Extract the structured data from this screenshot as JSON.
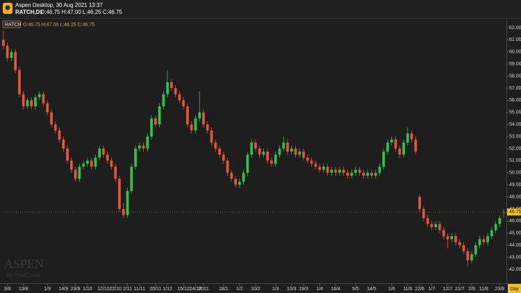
{
  "window": {
    "title": "Aspen Desktop, 30 Aug 2021 13:37",
    "symbol": "RATCH,D1",
    "quote": "O:46.75 H:47.00 L:46.25 C:46.75"
  },
  "watermark": {
    "brand": "ASPEN",
    "by": "by ThaiQuest"
  },
  "chart_data": {
    "type": "candlestick",
    "legend_text": "O:46.75 H:47.00 L:46.25 C:46.75",
    "period": "Day",
    "last_price": 46.75,
    "ylim": [
      40.85,
      62.69
    ],
    "yticks": [
      {
        "value": 42,
        "label": "42.00"
      },
      {
        "value": 43,
        "label": "43.00"
      },
      {
        "value": 44,
        "label": "44.00"
      },
      {
        "value": 45,
        "label": "45.00"
      },
      {
        "value": 46,
        "label": "46.00"
      },
      {
        "value": 47,
        "label": "47.00"
      },
      {
        "value": 48,
        "label": "48.00"
      },
      {
        "value": 49,
        "label": "49.00"
      },
      {
        "value": 50,
        "label": "50.00"
      },
      {
        "value": 51,
        "label": "51.00"
      },
      {
        "value": 52,
        "label": "52.00"
      },
      {
        "value": 53,
        "label": "53.00"
      },
      {
        "value": 54,
        "label": "54.00"
      },
      {
        "value": 55,
        "label": "55.00"
      },
      {
        "value": 56,
        "label": "56.00"
      },
      {
        "value": 57,
        "label": "57.00"
      },
      {
        "value": 58,
        "label": "58.00"
      },
      {
        "value": 59,
        "label": "59.00"
      },
      {
        "value": 60,
        "label": "60.00"
      },
      {
        "value": 61,
        "label": "61.00"
      },
      {
        "value": 62,
        "label": "62.00"
      }
    ],
    "xticks": [
      {
        "value": 1,
        "label": "3/8"
      },
      {
        "value": 5,
        "label": "13/8"
      },
      {
        "value": 11,
        "label": "1/9"
      },
      {
        "value": 15,
        "label": "14/9"
      },
      {
        "value": 18,
        "label": "23/9"
      },
      {
        "value": 21,
        "label": "1/10"
      },
      {
        "value": 25,
        "label": "12/10"
      },
      {
        "value": 28,
        "label": "22/10"
      },
      {
        "value": 31,
        "label": "2/11"
      },
      {
        "value": 34,
        "label": "11/11"
      },
      {
        "value": 38,
        "label": "20/11"
      },
      {
        "value": 41,
        "label": "1/12"
      },
      {
        "value": 45,
        "label": "15/12"
      },
      {
        "value": 48,
        "label": "24/12"
      },
      {
        "value": 50,
        "label": "2021"
      },
      {
        "value": 55,
        "label": "18/1"
      },
      {
        "value": 59,
        "label": "1/2"
      },
      {
        "value": 63,
        "label": "10/2"
      },
      {
        "value": 68,
        "label": "1/3"
      },
      {
        "value": 72,
        "label": "10/3"
      },
      {
        "value": 75,
        "label": "19/3"
      },
      {
        "value": 79,
        "label": "1/4"
      },
      {
        "value": 83,
        "label": "16/4"
      },
      {
        "value": 88,
        "label": "5/5"
      },
      {
        "value": 92,
        "label": "14/5"
      },
      {
        "value": 97,
        "label": "1/6"
      },
      {
        "value": 101,
        "label": "11/6"
      },
      {
        "value": 104,
        "label": "22/6"
      },
      {
        "value": 107,
        "label": "1/7"
      },
      {
        "value": 111,
        "label": "12/7"
      },
      {
        "value": 114,
        "label": "21/7"
      },
      {
        "value": 117,
        "label": "2/8"
      },
      {
        "value": 120,
        "label": "11/8"
      },
      {
        "value": 124,
        "label": "23/8"
      }
    ],
    "grid": false,
    "series": [
      {
        "name": "RATCH",
        "up_color": "#2fc44c",
        "down_color": "#e5573a",
        "ohlc": [
          [
            61,
            61.75,
            60.25,
            60.5
          ],
          [
            60.5,
            60.75,
            59.25,
            59.5
          ],
          [
            59.5,
            60.25,
            59.25,
            60
          ],
          [
            60,
            60.25,
            58.25,
            58.5
          ],
          [
            58.5,
            58.75,
            56.25,
            56.5
          ],
          [
            56.5,
            56.75,
            55.25,
            55.5
          ],
          [
            55.5,
            56.25,
            55.25,
            56
          ],
          [
            56,
            56.25,
            55.25,
            55.5
          ],
          [
            55.5,
            56.5,
            55.25,
            56.25
          ],
          [
            56.25,
            56.75,
            56,
            56.5
          ],
          [
            56.5,
            56.75,
            55.5,
            55.75
          ],
          [
            55.75,
            56,
            54.75,
            55
          ],
          [
            55,
            55.25,
            53.75,
            54
          ],
          [
            54,
            54.25,
            53.25,
            53.5
          ],
          [
            53.5,
            53.75,
            52.5,
            52.75
          ],
          [
            52.75,
            53,
            51.75,
            52
          ],
          [
            52,
            52.25,
            50.75,
            51
          ],
          [
            51,
            51.25,
            50,
            50.25
          ],
          [
            50.25,
            50.5,
            49.25,
            49.5
          ],
          [
            49.5,
            50.75,
            49.25,
            50.5
          ],
          [
            50.5,
            51,
            50.25,
            50.75
          ],
          [
            50.75,
            51.25,
            50.5,
            51
          ],
          [
            51,
            51.25,
            50.25,
            50.5
          ],
          [
            50.5,
            51.5,
            50.25,
            51.25
          ],
          [
            51.25,
            52.25,
            51,
            52
          ],
          [
            52,
            52.25,
            51.25,
            51.5
          ],
          [
            51.5,
            51.75,
            50.75,
            51
          ],
          [
            51,
            51.25,
            50.25,
            50.5
          ],
          [
            50.5,
            50.75,
            49.25,
            49.5
          ],
          [
            49.5,
            49.75,
            46.75,
            47
          ],
          [
            47,
            47.5,
            46.25,
            46.5
          ],
          [
            46.5,
            48.75,
            46.25,
            48.5
          ],
          [
            48.5,
            50.75,
            48.25,
            50.5
          ],
          [
            50.5,
            52.25,
            50.25,
            52
          ],
          [
            52,
            52.5,
            51.75,
            52.25
          ],
          [
            52.25,
            52.5,
            51.75,
            52
          ],
          [
            52,
            53.25,
            51.75,
            53
          ],
          [
            53,
            54.75,
            52.75,
            54.5
          ],
          [
            54.5,
            54.75,
            53.75,
            54
          ],
          [
            54,
            55.75,
            53.75,
            55.5
          ],
          [
            55.5,
            56.75,
            55.25,
            56.5
          ],
          [
            56.5,
            58.5,
            56.25,
            57.5
          ],
          [
            57.5,
            57.75,
            56.75,
            57
          ],
          [
            57,
            57.25,
            56.25,
            56.5
          ],
          [
            56.5,
            56.75,
            55.75,
            56
          ],
          [
            56,
            56.25,
            55.25,
            55.5
          ],
          [
            55.5,
            55.75,
            53.75,
            54
          ],
          [
            54,
            54.25,
            53.25,
            53.5
          ],
          [
            53.5,
            54.75,
            53.25,
            54.5
          ],
          [
            54.5,
            56.75,
            54.25,
            55
          ],
          [
            55,
            55.25,
            53.75,
            54
          ],
          [
            54,
            54.25,
            53.25,
            53.5
          ],
          [
            53.5,
            53.75,
            52.25,
            52.5
          ],
          [
            52.5,
            52.75,
            51.75,
            52
          ],
          [
            52,
            52.25,
            51.25,
            51.5
          ],
          [
            51.5,
            51.75,
            50.75,
            51
          ],
          [
            51,
            51.25,
            49.75,
            50
          ],
          [
            50,
            50.25,
            49.25,
            49.5
          ],
          [
            49.5,
            49.75,
            48.75,
            49
          ],
          [
            49,
            49.5,
            48.75,
            49.25
          ],
          [
            49.25,
            50.25,
            49,
            50
          ],
          [
            50,
            51.75,
            49.75,
            51.5
          ],
          [
            51.5,
            52.75,
            51.25,
            52.5
          ],
          [
            52.5,
            52.75,
            51.75,
            52
          ],
          [
            52,
            52.25,
            51.25,
            51.5
          ],
          [
            51.5,
            52,
            51.25,
            51.75
          ],
          [
            51.75,
            52,
            50.75,
            51
          ],
          [
            51,
            51.25,
            50.5,
            50.75
          ],
          [
            50.75,
            51.75,
            50.5,
            51.5
          ],
          [
            51.5,
            52.25,
            51.25,
            52
          ],
          [
            52,
            53,
            51.75,
            52.5
          ],
          [
            52.5,
            52.75,
            51.5,
            51.75
          ],
          [
            51.75,
            52.25,
            51.5,
            52
          ],
          [
            52,
            52.25,
            51.25,
            51.5
          ],
          [
            51.5,
            52,
            51.25,
            51.75
          ],
          [
            51.75,
            52,
            51,
            51.25
          ],
          [
            51.25,
            51.5,
            50.75,
            51
          ],
          [
            51,
            51.25,
            50.5,
            50.75
          ],
          [
            50.75,
            51,
            50.25,
            50.5
          ],
          [
            50.5,
            50.75,
            50,
            50.25
          ],
          [
            50.25,
            50.75,
            50,
            50.5
          ],
          [
            50.5,
            50.75,
            49.75,
            50
          ],
          [
            50,
            50.5,
            49.75,
            50.25
          ],
          [
            50.25,
            50.5,
            49.75,
            50
          ],
          [
            50,
            50.5,
            49.75,
            50.25
          ],
          [
            50.25,
            50.5,
            49.75,
            50
          ],
          [
            50,
            50.25,
            49.5,
            49.75
          ],
          [
            49.75,
            50.25,
            49.5,
            50
          ],
          [
            50,
            50.5,
            49.75,
            50.25
          ],
          [
            50.25,
            50.5,
            49.75,
            50
          ],
          [
            50,
            50.25,
            49.5,
            49.75
          ],
          [
            49.75,
            50.25,
            49.5,
            50
          ],
          [
            50,
            50.25,
            49.5,
            49.75
          ],
          [
            49.75,
            50.25,
            49.5,
            50
          ],
          [
            50,
            50.75,
            49.75,
            50.5
          ],
          [
            50.5,
            52,
            50.25,
            51.75
          ],
          [
            51.75,
            52.75,
            51.5,
            52.5
          ],
          [
            52.5,
            53,
            52.25,
            52.75
          ],
          [
            52.75,
            53,
            51.75,
            52
          ],
          [
            52,
            52.25,
            51.25,
            51.5
          ],
          [
            51.5,
            52.75,
            51.25,
            52.5
          ],
          [
            52.5,
            53.75,
            52.25,
            53.25
          ],
          [
            53.25,
            53.5,
            52.5,
            52.75
          ],
          [
            52.75,
            53,
            51.5,
            51.75
          ],
          [
            48,
            48.25,
            46.75,
            47
          ],
          [
            47,
            47.25,
            46,
            46.25
          ],
          [
            46.25,
            46.5,
            45.5,
            45.75
          ],
          [
            45.75,
            46,
            45.25,
            45.5
          ],
          [
            45.5,
            46,
            45.25,
            45.75
          ],
          [
            45.75,
            46,
            45,
            45.25
          ],
          [
            45.25,
            45.5,
            44.5,
            44.75
          ],
          [
            44.75,
            45,
            43.75,
            44.5
          ],
          [
            44.5,
            45,
            44.25,
            44.75
          ],
          [
            44.75,
            45,
            44,
            44.25
          ],
          [
            44.25,
            44.5,
            43.75,
            44
          ],
          [
            44,
            44.25,
            43.25,
            43.5
          ],
          [
            43.5,
            43.75,
            42.25,
            42.75
          ],
          [
            42.75,
            43.5,
            42.5,
            43.25
          ],
          [
            43.25,
            44.25,
            43,
            44
          ],
          [
            44,
            44.75,
            43.75,
            44.5
          ],
          [
            44.5,
            44.75,
            44,
            44.25
          ],
          [
            44.25,
            45,
            44,
            44.75
          ],
          [
            44.75,
            45.5,
            44.5,
            45.25
          ],
          [
            45.25,
            46,
            45,
            45.75
          ],
          [
            45.75,
            46.5,
            45.5,
            46.25
          ],
          [
            46.75,
            47,
            46.25,
            46.75
          ]
        ]
      }
    ]
  }
}
